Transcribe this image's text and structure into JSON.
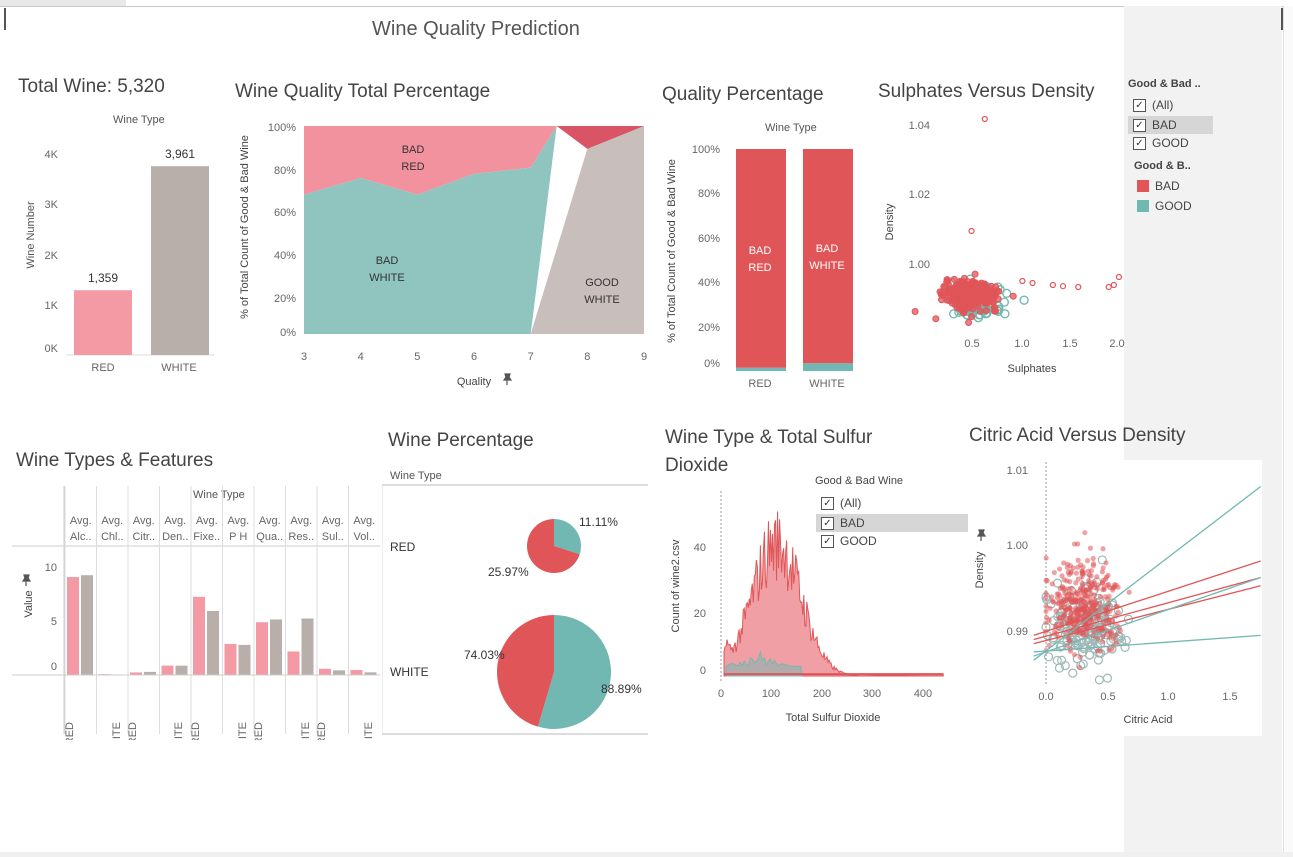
{
  "dashboard": {
    "title": "Wine Quality Prediction"
  },
  "colors": {
    "red_wine": "#f39aa5",
    "white_wine": "#b9afaa",
    "bad": "#e05558",
    "good": "#72b8b2",
    "bad_light": "#f2929e",
    "good_light": "#8fc5be",
    "gray_area": "#c8bebb"
  },
  "total": {
    "title": "Total Wine: 5,320",
    "legend_title": "Wine Type",
    "ylabel": "Wine Number",
    "ticks": [
      "4K",
      "3K",
      "2K",
      "1K",
      "0K"
    ],
    "chart_data": {
      "type": "bar",
      "categories": [
        "RED",
        "WHITE"
      ],
      "values": [
        1359,
        3961
      ],
      "value_labels": [
        "1,359",
        "3,961"
      ],
      "ylim": [
        0,
        4300
      ]
    }
  },
  "qtotal": {
    "title": "Wine Quality Total Percentage",
    "ylabel": "% of Total Count of Good & Bad Wine",
    "xlabel": "Quality",
    "yticks": [
      "100%",
      "80%",
      "60%",
      "40%",
      "20%",
      "0%"
    ],
    "xticks": [
      "3",
      "4",
      "5",
      "6",
      "7",
      "8",
      "9"
    ],
    "labels": {
      "bad_red_1": "BAD",
      "bad_red_2": "RED",
      "bad_white_1": "BAD",
      "bad_white_2": "WHITE",
      "good_white_1": "GOOD",
      "good_white_2": "WHITE"
    },
    "chart_data": {
      "type": "area",
      "x": [
        3,
        4,
        5,
        6,
        7,
        8,
        9
      ],
      "series": [
        {
          "name": "BAD WHITE",
          "values": [
            67,
            75,
            67,
            77,
            80,
            0,
            0
          ]
        },
        {
          "name": "BAD RED",
          "values": [
            33,
            25,
            33,
            23,
            20,
            0,
            0
          ]
        },
        {
          "name": "GOOD WHITE",
          "values": [
            0,
            0,
            0,
            0,
            0,
            89,
            100
          ]
        },
        {
          "name": "GOOD RED",
          "values": [
            0,
            0,
            0,
            0,
            0,
            11,
            0
          ]
        }
      ],
      "ylim": [
        0,
        100
      ]
    }
  },
  "qpct": {
    "title": "Quality Percentage",
    "legend_title": "Wine Type",
    "ylabel": "% of Total Count of Good & Bad Wine",
    "yticks": [
      "100%",
      "80%",
      "60%",
      "40%",
      "20%",
      "0%"
    ],
    "bar_labels": {
      "red_1": "BAD",
      "red_2": "RED",
      "white_1": "BAD",
      "white_2": "WHITE"
    },
    "chart_data": {
      "type": "bar",
      "categories": [
        "RED",
        "WHITE"
      ],
      "series": [
        {
          "name": "BAD",
          "values": [
            98.5,
            96.5
          ]
        },
        {
          "name": "GOOD",
          "values": [
            1.5,
            3.5
          ]
        }
      ],
      "ylim": [
        0,
        100
      ]
    }
  },
  "sulph": {
    "title": "Sulphates Versus Density",
    "ylabel": "Density",
    "xlabel": "Sulphates",
    "yticks": [
      "1.04",
      "1.02",
      "1.00"
    ],
    "xticks": [
      "0.5",
      "1.0",
      "1.5",
      "2.0"
    ],
    "chart_data": {
      "type": "scatter",
      "xlim": [
        0.2,
        2.05
      ],
      "ylim": [
        0.987,
        1.04
      ],
      "bad_outliers": [
        [
          0.68,
          1.039
        ],
        [
          0.55,
          1.011
        ],
        [
          1.35,
          0.9975
        ],
        [
          1.45,
          0.9972
        ],
        [
          1.6,
          0.997
        ],
        [
          1.95,
          0.9975
        ],
        [
          2.0,
          0.9995
        ],
        [
          1.9,
          0.997
        ],
        [
          1.15,
          0.998
        ],
        [
          1.05,
          0.9985
        ]
      ],
      "bad_cluster_center": [
        0.55,
        0.995
      ],
      "good_cluster_center": [
        0.6,
        0.993
      ]
    }
  },
  "filter1": {
    "title": "Good & Bad ..",
    "items": [
      "(All)",
      "BAD",
      "GOOD"
    ],
    "legend_title": "Good & B..",
    "legend": [
      "BAD",
      "GOOD"
    ]
  },
  "features": {
    "title": "Wine Types & Features",
    "header": "Wine Type",
    "columns": [
      "Avg. Alc..",
      "Avg. Chl..",
      "Avg. Citr..",
      "Avg. Den..",
      "Avg. Fixe..",
      "Avg. P H",
      "Avg. Qua..",
      "Avg. Res..",
      "Avg. Sul..",
      "Avg. Vol.."
    ],
    "col_top": [
      "Avg.",
      "Avg.",
      "Avg.",
      "Avg.",
      "Avg.",
      "Avg.",
      "Avg.",
      "Avg.",
      "Avg.",
      "Avg."
    ],
    "col_bottom": [
      "Alc..",
      "Chl..",
      "Citr..",
      "Den..",
      "Fixe..",
      "P H",
      "Qua..",
      "Res..",
      "Sul..",
      "Vol.."
    ],
    "ylabel": "Value",
    "yticks": [
      "10",
      "5",
      "0"
    ],
    "xlabels": [
      "RED",
      "WHITE",
      "RED",
      "WHITE",
      "RED",
      "WHITE",
      "RED",
      "WHITE",
      "RED",
      "WHITE"
    ],
    "chart_data": {
      "type": "bar",
      "categories": [
        "Avg. Alc..",
        "Avg. Chl..",
        "Avg. Citr..",
        "Avg. Den..",
        "Avg. Fixe..",
        "Avg. P H",
        "Avg. Qua..",
        "Avg. Res..",
        "Avg. Sul..",
        "Avg. Vol.."
      ],
      "series": [
        {
          "name": "RED",
          "values": [
            10.4,
            0.09,
            0.27,
            1.0,
            8.3,
            3.3,
            5.6,
            2.5,
            0.66,
            0.53
          ]
        },
        {
          "name": "WHITE",
          "values": [
            10.6,
            0.05,
            0.33,
            0.99,
            6.8,
            3.2,
            5.9,
            6.0,
            0.49,
            0.28
          ]
        }
      ],
      "ylim": [
        0,
        12
      ]
    }
  },
  "winepct": {
    "title": "Wine Percentage",
    "header": "Wine Type",
    "rows": [
      "RED",
      "WHITE"
    ],
    "chart_data": {
      "type": "pie",
      "pies": [
        {
          "name": "RED",
          "slices": [
            {
              "name": "GOOD",
              "value": 11.11
            },
            {
              "name": "BAD",
              "value": 25.97
            }
          ]
        },
        {
          "name": "WHITE",
          "slices": [
            {
              "name": "BAD",
              "value": 74.03
            },
            {
              "name": "GOOD",
              "value": 88.89
            }
          ]
        }
      ]
    },
    "labels": {
      "red_good": "11.11%",
      "red_bad": "25.97%",
      "white_bad": "74.03%",
      "white_good": "88.89%"
    }
  },
  "sulfur": {
    "title1": "Wine Type & Total Sulfur",
    "title2": "Dioxide",
    "ylabel": "Count of wine2.csv",
    "xlabel": "Total Sulfur Dioxide",
    "yticks": [
      "40",
      "20",
      "0"
    ],
    "xticks": [
      "0",
      "100",
      "200",
      "300",
      "400"
    ],
    "chart_data": {
      "type": "area",
      "xlim": [
        -5,
        450
      ],
      "ylim": [
        0,
        56
      ],
      "peak_x": 110,
      "peak_y": 53,
      "range": [
        6,
        440
      ]
    }
  },
  "filter2": {
    "title": "Good & Bad Wine",
    "items": [
      "(All)",
      "BAD",
      "GOOD"
    ]
  },
  "citric": {
    "title": "Citric Acid Versus Density",
    "ylabel": "Density",
    "xlabel": "Citric Acid",
    "yticks": [
      "1.01",
      "1.00",
      "0.99"
    ],
    "xticks": [
      "0.0",
      "0.5",
      "1.0",
      "1.5"
    ],
    "chart_data": {
      "type": "scatter",
      "xlim": [
        -0.1,
        1.75
      ],
      "ylim": [
        0.9855,
        1.0115
      ],
      "cluster_center": [
        0.3,
        0.995
      ]
    }
  }
}
